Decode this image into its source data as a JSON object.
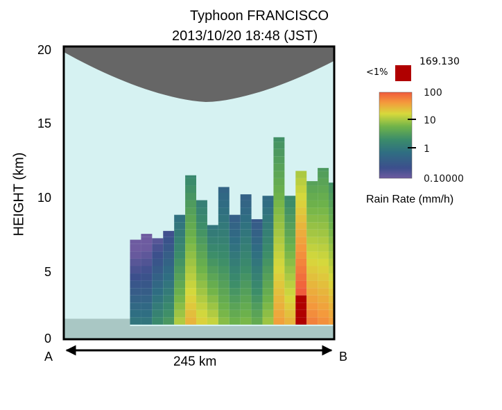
{
  "title": {
    "line1": "Typhoon FRANCISCO",
    "line2": "2013/10/20   18:48 (JST)"
  },
  "colors": {
    "sky": "#d6f2f2",
    "ground": "#a9c7c4",
    "upper_shadow": "#666666",
    "heavy_rain": "#b00000",
    "frame": "#000000"
  },
  "chart_data": {
    "type": "heatmap",
    "title": "Typhoon FRANCISCO  2013/10/20   18:48 (JST)",
    "xlabel": "245 km",
    "ylabel": "HEIGHT (km)",
    "x_range_km": [
      0,
      245
    ],
    "ylim": [
      0,
      20
    ],
    "yticks": [
      0,
      5,
      10,
      15,
      20
    ],
    "y_tick_labels": [
      "0",
      "5",
      "10",
      "15",
      "20"
    ],
    "x_endpoints": [
      "A",
      "B"
    ],
    "columns": {
      "width_km": 10,
      "x_start_km": [
        60,
        70,
        80,
        90,
        100,
        110,
        120,
        130,
        140,
        150,
        160,
        170,
        180,
        190,
        200,
        210,
        220,
        230,
        240
      ],
      "echo_top_km": [
        6.8,
        7.2,
        6.9,
        7.4,
        8.5,
        11.2,
        9.5,
        7.8,
        10.4,
        8.5,
        9.9,
        8.2,
        9.8,
        13.8,
        9.8,
        11.5,
        10.8,
        11.7,
        10.7
      ],
      "max_rain_mm_h": [
        1,
        1,
        2,
        3,
        12,
        30,
        20,
        15,
        8,
        6,
        7,
        5,
        10,
        40,
        30,
        169.13,
        60,
        50,
        40
      ]
    },
    "colorbar": {
      "label": "Rain Rate (mm/h)",
      "scale": "log",
      "range": [
        0.1,
        100
      ],
      "ticks": [
        0.1,
        1,
        10,
        100
      ],
      "tick_labels": [
        "0.10000",
        "1",
        "10",
        "100"
      ],
      "max_value": "169.130",
      "over_label": "<1%",
      "over_color": "#b00000"
    }
  }
}
